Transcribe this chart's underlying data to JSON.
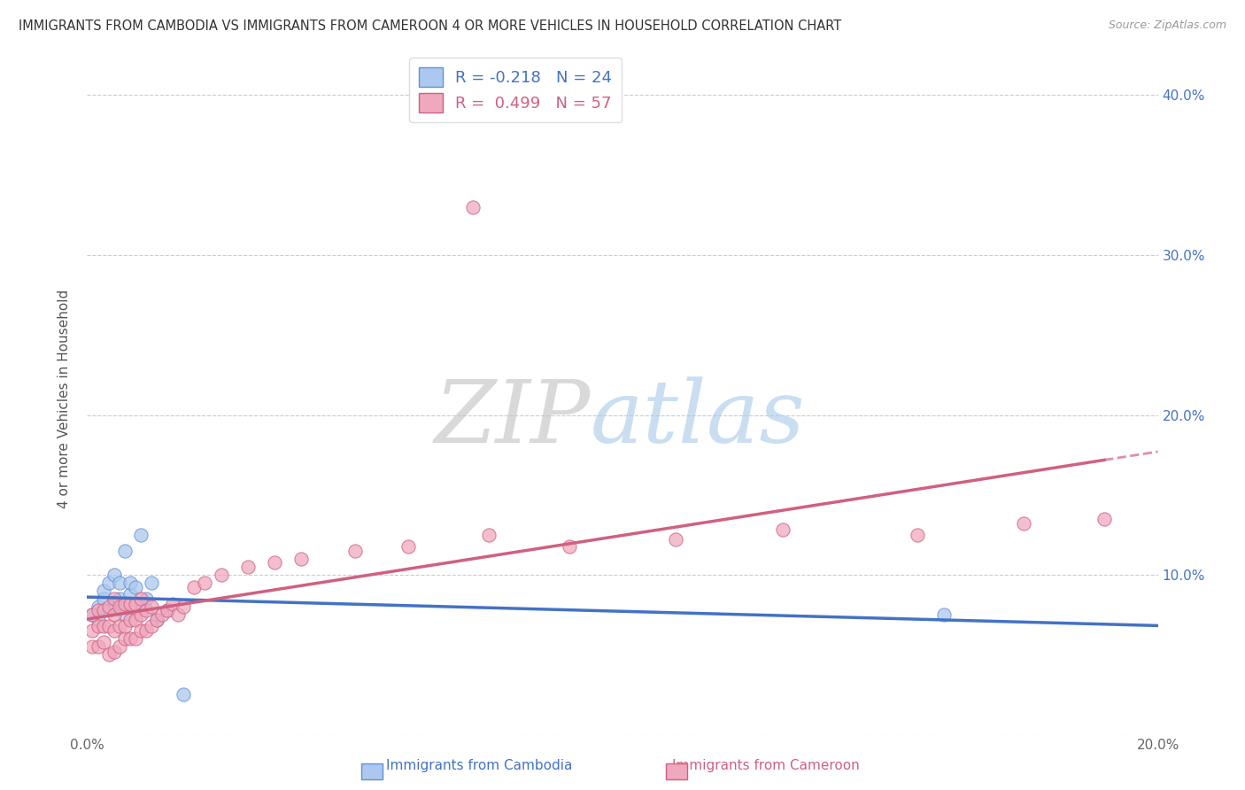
{
  "title": "IMMIGRANTS FROM CAMBODIA VS IMMIGRANTS FROM CAMEROON 4 OR MORE VEHICLES IN HOUSEHOLD CORRELATION CHART",
  "source": "Source: ZipAtlas.com",
  "ylabel": "4 or more Vehicles in Household",
  "xlim": [
    0.0,
    0.2
  ],
  "ylim": [
    0.0,
    0.42
  ],
  "watermark_zip": "ZIP",
  "watermark_atlas": "atlas",
  "legend_cambodia_label": "R = -0.218   N = 24",
  "legend_cameroon_label": "R =  0.499   N = 57",
  "color_cambodia_fill": "#adc8f0",
  "color_cameroon_fill": "#f0a8be",
  "color_cambodia_edge": "#6090d0",
  "color_cameroon_edge": "#d06080",
  "line_color_cambodia": "#4472c4",
  "line_color_cameroon": "#d06080",
  "background_color": "#ffffff",
  "grid_color": "#cccccc",
  "cambodia_x": [
    0.001,
    0.002,
    0.002,
    0.003,
    0.003,
    0.004,
    0.004,
    0.005,
    0.005,
    0.006,
    0.006,
    0.007,
    0.007,
    0.008,
    0.008,
    0.009,
    0.01,
    0.01,
    0.011,
    0.012,
    0.013,
    0.015,
    0.018,
    0.16
  ],
  "cambodia_y": [
    0.075,
    0.08,
    0.072,
    0.085,
    0.09,
    0.078,
    0.095,
    0.082,
    0.1,
    0.085,
    0.095,
    0.075,
    0.115,
    0.088,
    0.095,
    0.092,
    0.125,
    0.08,
    0.085,
    0.095,
    0.072,
    0.078,
    0.025,
    0.075
  ],
  "cameroon_x": [
    0.001,
    0.001,
    0.001,
    0.002,
    0.002,
    0.002,
    0.003,
    0.003,
    0.003,
    0.004,
    0.004,
    0.004,
    0.005,
    0.005,
    0.005,
    0.005,
    0.006,
    0.006,
    0.006,
    0.007,
    0.007,
    0.007,
    0.008,
    0.008,
    0.008,
    0.009,
    0.009,
    0.009,
    0.01,
    0.01,
    0.01,
    0.011,
    0.011,
    0.012,
    0.012,
    0.013,
    0.014,
    0.015,
    0.016,
    0.017,
    0.018,
    0.02,
    0.022,
    0.025,
    0.03,
    0.035,
    0.04,
    0.05,
    0.06,
    0.075,
    0.09,
    0.11,
    0.13,
    0.155,
    0.175,
    0.19,
    0.072
  ],
  "cameroon_y": [
    0.055,
    0.065,
    0.075,
    0.055,
    0.068,
    0.078,
    0.058,
    0.068,
    0.078,
    0.05,
    0.068,
    0.08,
    0.052,
    0.065,
    0.075,
    0.085,
    0.055,
    0.068,
    0.08,
    0.06,
    0.068,
    0.082,
    0.06,
    0.072,
    0.082,
    0.06,
    0.072,
    0.082,
    0.065,
    0.075,
    0.085,
    0.065,
    0.078,
    0.068,
    0.08,
    0.072,
    0.075,
    0.078,
    0.082,
    0.075,
    0.08,
    0.092,
    0.095,
    0.1,
    0.105,
    0.108,
    0.11,
    0.115,
    0.118,
    0.125,
    0.118,
    0.122,
    0.128,
    0.125,
    0.132,
    0.135,
    0.33
  ]
}
